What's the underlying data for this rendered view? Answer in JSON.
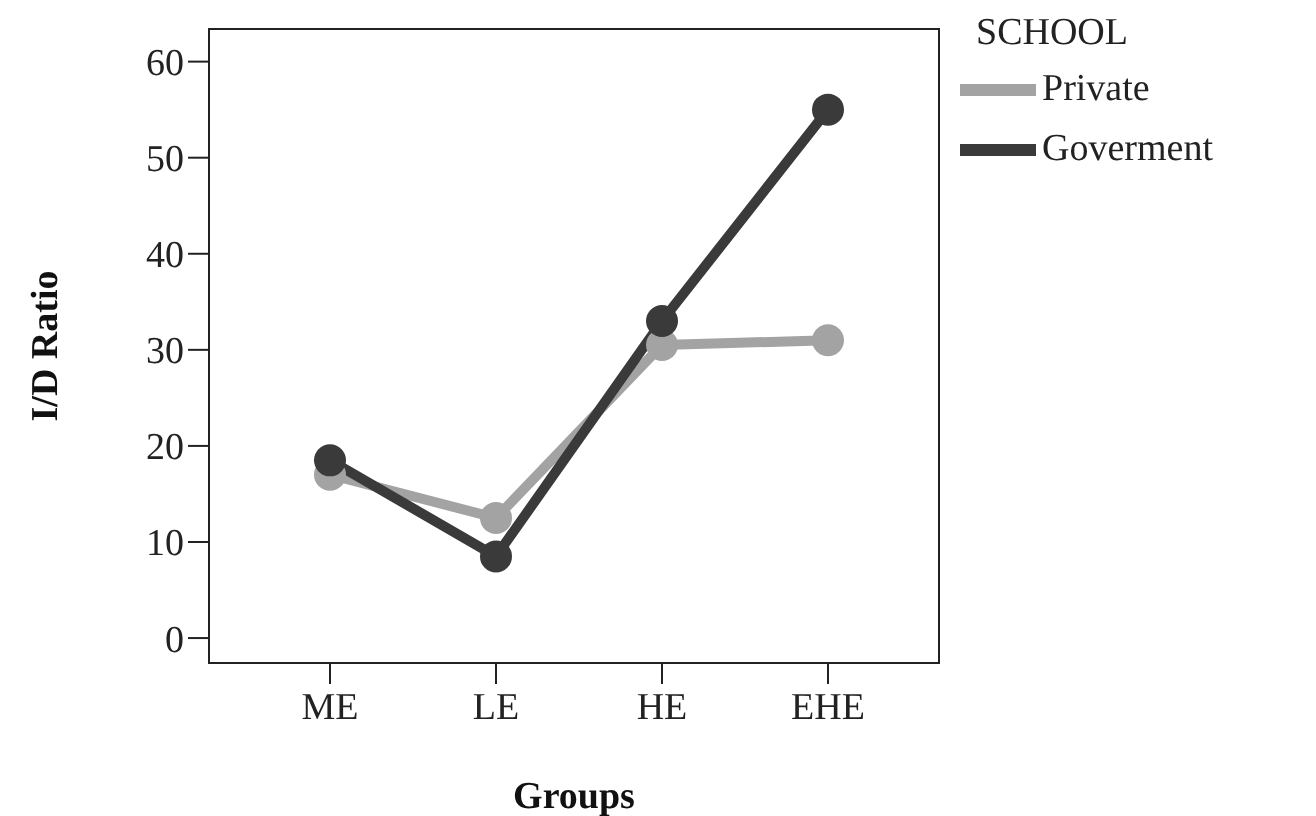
{
  "chart_data": {
    "type": "line",
    "xlabel": "Groups",
    "ylabel": "I/D Ratio",
    "legend_title": "SCHOOL",
    "categories": [
      "ME",
      "LE",
      "HE",
      "EHE"
    ],
    "series": [
      {
        "name": "Private",
        "color": "#a3a3a3",
        "values": [
          17,
          12.5,
          30.5,
          31
        ]
      },
      {
        "name": "Goverment",
        "color": "#3a3a3a",
        "values": [
          18.5,
          8.5,
          33,
          55
        ]
      }
    ],
    "ylim": [
      -2.7,
      63.5
    ],
    "yticks": [
      0,
      10,
      20,
      30,
      40,
      50,
      60
    ],
    "grid": false,
    "legend": "top right",
    "marker": "circle",
    "line_style": "solid"
  }
}
